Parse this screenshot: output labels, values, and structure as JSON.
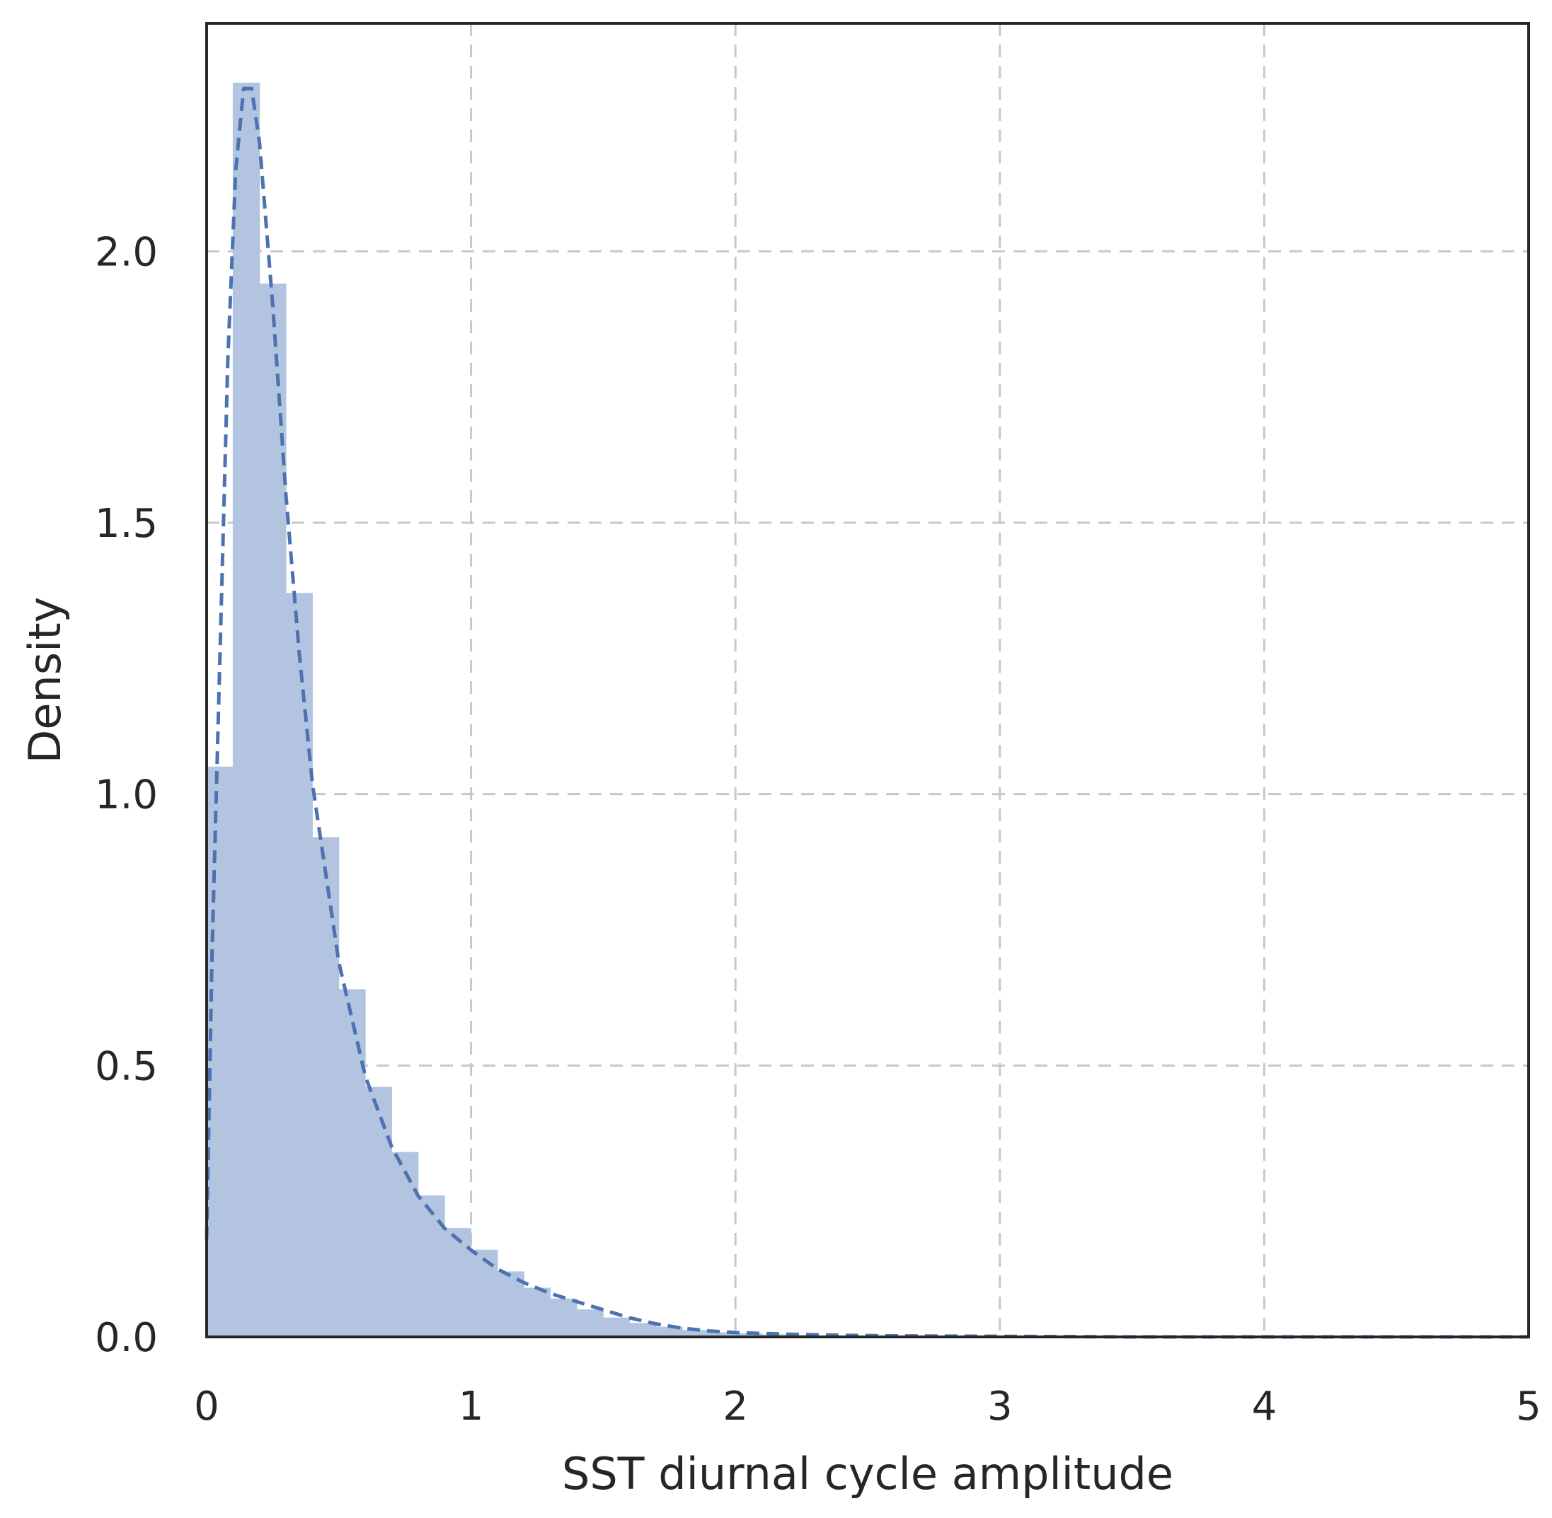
{
  "chart_data": {
    "type": "bar",
    "title": "",
    "xlabel": "SST diurnal cycle amplitude",
    "ylabel": "Density",
    "xlim": [
      0,
      5
    ],
    "ylim": [
      0,
      2.42
    ],
    "xticks": [
      0,
      1,
      2,
      3,
      4,
      5
    ],
    "xtick_labels": [
      "0",
      "1",
      "2",
      "3",
      "4",
      "5"
    ],
    "yticks": [
      0.0,
      0.5,
      1.0,
      1.5,
      2.0
    ],
    "ytick_labels": [
      "0.0",
      "0.5",
      "1.0",
      "1.5",
      "2.0"
    ],
    "grid": true,
    "legend": "none",
    "histogram": {
      "bin_width": 0.1,
      "bin_edges": [
        0.0,
        0.1,
        0.2,
        0.3,
        0.4,
        0.5,
        0.6,
        0.7,
        0.8,
        0.9,
        1.0,
        1.1,
        1.2,
        1.3,
        1.4,
        1.5,
        1.6,
        1.7,
        1.8,
        1.9,
        2.0,
        2.1,
        2.2,
        2.3,
        2.4,
        2.5
      ],
      "values": [
        1.05,
        2.31,
        1.94,
        1.37,
        0.92,
        0.64,
        0.46,
        0.34,
        0.26,
        0.2,
        0.16,
        0.12,
        0.09,
        0.07,
        0.05,
        0.035,
        0.025,
        0.018,
        0.012,
        0.008,
        0.006,
        0.004,
        0.003,
        0.002,
        0.001
      ],
      "color": "#b3c4e0"
    },
    "series": [
      {
        "kind": "density-curve",
        "style": "dashed",
        "color": "#4c72b0",
        "x": [
          0.0,
          0.02,
          0.05,
          0.08,
          0.11,
          0.14,
          0.17,
          0.2,
          0.25,
          0.3,
          0.35,
          0.4,
          0.5,
          0.6,
          0.7,
          0.8,
          0.9,
          1.0,
          1.1,
          1.2,
          1.3,
          1.4,
          1.5,
          1.6,
          1.7,
          1.8,
          1.9,
          2.0,
          2.2,
          2.4,
          2.6,
          3.0,
          3.5,
          4.0,
          5.0
        ],
        "y": [
          0.18,
          0.7,
          1.25,
          1.8,
          2.15,
          2.3,
          2.3,
          2.2,
          1.9,
          1.55,
          1.26,
          1.02,
          0.69,
          0.48,
          0.35,
          0.26,
          0.2,
          0.16,
          0.125,
          0.1,
          0.08,
          0.065,
          0.05,
          0.035,
          0.024,
          0.016,
          0.011,
          0.008,
          0.005,
          0.003,
          0.002,
          0.001,
          0.0,
          0.0,
          0.0
        ]
      }
    ]
  }
}
